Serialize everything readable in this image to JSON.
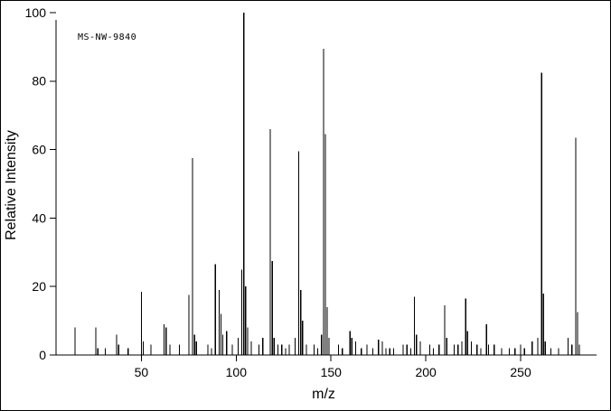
{
  "figure": {
    "background": "#ffffff",
    "frame_color": "#000000"
  },
  "chart_data": {
    "type": "bar",
    "subtype": "mass-spectrum",
    "title": "",
    "annotation": "MS-NW-9840",
    "xlabel": "m/z",
    "ylabel": "Relative Intensity",
    "xlim": [
      5,
      290
    ],
    "ylim": [
      0,
      100
    ],
    "x_ticks": [
      50,
      100,
      150,
      200,
      250
    ],
    "y_ticks": [
      0,
      20,
      40,
      60,
      80,
      100
    ],
    "grid": false,
    "legend": "none",
    "peak_color": "#000000",
    "axis_color": "#000000",
    "peaks": [
      [
        15,
        8
      ],
      [
        26,
        8
      ],
      [
        27,
        2
      ],
      [
        31,
        2
      ],
      [
        37,
        6
      ],
      [
        38,
        3
      ],
      [
        43,
        2
      ],
      [
        50,
        18.5
      ],
      [
        51,
        4
      ],
      [
        55,
        3
      ],
      [
        62,
        9
      ],
      [
        63,
        8
      ],
      [
        65,
        3
      ],
      [
        70,
        3
      ],
      [
        75,
        17.5
      ],
      [
        77,
        57.5
      ],
      [
        78,
        6
      ],
      [
        79,
        4
      ],
      [
        85,
        3
      ],
      [
        87,
        2
      ],
      [
        89,
        26.5
      ],
      [
        91,
        19
      ],
      [
        92,
        12
      ],
      [
        93,
        6
      ],
      [
        95,
        7
      ],
      [
        98,
        3
      ],
      [
        101,
        5
      ],
      [
        103,
        25
      ],
      [
        104,
        100
      ],
      [
        105,
        20
      ],
      [
        106,
        8
      ],
      [
        108,
        4
      ],
      [
        112,
        3
      ],
      [
        114,
        5
      ],
      [
        118,
        66
      ],
      [
        119,
        27.5
      ],
      [
        120,
        5
      ],
      [
        122,
        3
      ],
      [
        124,
        3
      ],
      [
        126,
        2
      ],
      [
        128,
        3
      ],
      [
        131,
        5
      ],
      [
        133,
        59.5
      ],
      [
        134,
        19
      ],
      [
        135,
        10
      ],
      [
        137,
        3
      ],
      [
        141,
        3
      ],
      [
        143,
        2
      ],
      [
        145,
        6
      ],
      [
        146,
        89.5
      ],
      [
        147,
        64.5
      ],
      [
        148,
        14
      ],
      [
        149,
        5
      ],
      [
        154,
        3
      ],
      [
        156,
        2
      ],
      [
        160,
        7
      ],
      [
        161,
        5
      ],
      [
        163,
        4
      ],
      [
        166,
        2
      ],
      [
        169,
        3
      ],
      [
        172,
        2
      ],
      [
        175,
        4.5
      ],
      [
        177,
        4
      ],
      [
        179,
        2
      ],
      [
        181,
        2
      ],
      [
        183,
        2
      ],
      [
        188,
        3
      ],
      [
        190,
        3
      ],
      [
        192,
        2
      ],
      [
        194,
        17
      ],
      [
        195,
        6
      ],
      [
        197,
        4
      ],
      [
        202,
        3
      ],
      [
        204,
        2
      ],
      [
        207,
        3
      ],
      [
        210,
        14.5
      ],
      [
        211,
        5
      ],
      [
        215,
        3
      ],
      [
        217,
        3
      ],
      [
        219,
        4
      ],
      [
        221,
        16.5
      ],
      [
        222,
        7
      ],
      [
        224,
        4
      ],
      [
        227,
        3
      ],
      [
        229,
        2
      ],
      [
        232,
        9
      ],
      [
        233,
        3
      ],
      [
        236,
        3
      ],
      [
        240,
        2
      ],
      [
        244,
        2
      ],
      [
        247,
        2
      ],
      [
        250,
        3
      ],
      [
        252,
        2
      ],
      [
        256,
        4
      ],
      [
        259,
        5
      ],
      [
        261,
        82.5
      ],
      [
        262,
        18
      ],
      [
        263,
        4
      ],
      [
        266,
        2
      ],
      [
        270,
        2
      ],
      [
        275,
        5
      ],
      [
        277,
        3
      ],
      [
        279,
        63.5
      ],
      [
        280,
        12.5
      ],
      [
        281,
        3
      ]
    ]
  }
}
